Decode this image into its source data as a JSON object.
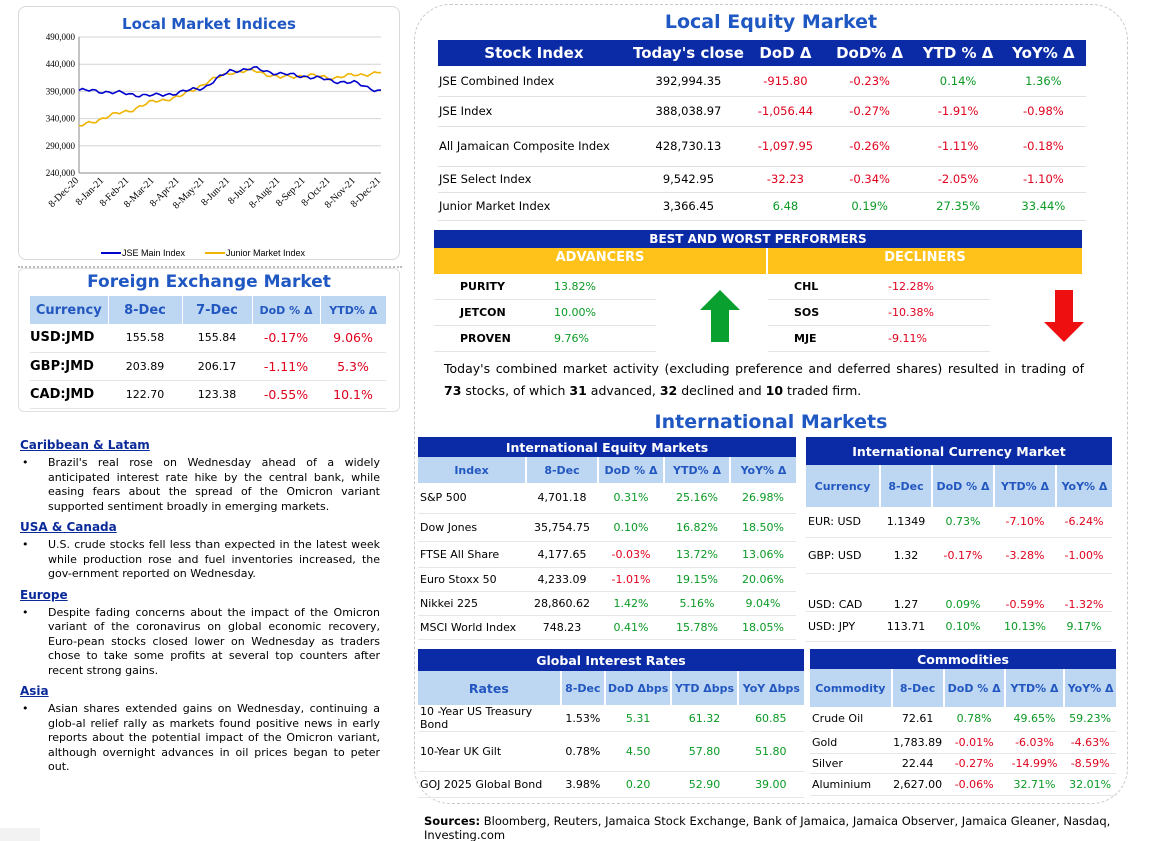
{
  "colors": {
    "navy": "#0a2aa6",
    "light_blue": "#bdd7f3",
    "gold": "#ffc21a",
    "green": "#0a9a24",
    "red": "#e0001c",
    "jse_main": "#0000cc",
    "junior": "#f0b400"
  },
  "local_indices_chart": {
    "title": "Local Market Indices",
    "y_ticks": [
      "490,000",
      "440,000",
      "390,000",
      "340,000",
      "290,000",
      "240,000"
    ],
    "x_ticks": [
      "8-Dec-20",
      "8-Jan-21",
      "8-Feb-21",
      "8-Mar-21",
      "8-Apr-21",
      "8-May-21",
      "8-Jun-21",
      "8-Jul-21",
      "8-Aug-21",
      "8-Sep-21",
      "8-Oct-21",
      "8-Nov-21",
      "8-Dec-21"
    ],
    "legend": [
      "JSE Main Index",
      "Junior Market Index"
    ]
  },
  "chart_data": {
    "type": "line",
    "title": "Local Market Indices",
    "xlabel": "",
    "ylabel": "",
    "ylim": [
      240000,
      490000
    ],
    "grid": true,
    "legend_position": "bottom",
    "x": [
      "8-Dec-20",
      "8-Jan-21",
      "8-Feb-21",
      "8-Mar-21",
      "8-Apr-21",
      "8-May-21",
      "8-Jun-21",
      "8-Jul-21",
      "8-Aug-21",
      "8-Sep-21",
      "8-Oct-21",
      "8-Nov-21",
      "8-Dec-21"
    ],
    "series": [
      {
        "name": "JSE Main Index",
        "values": [
          392000,
          390000,
          385000,
          382000,
          388000,
          398000,
          428000,
          432000,
          422000,
          418000,
          410000,
          405000,
          390000
        ]
      },
      {
        "name": "Junior Market Index",
        "values": [
          325000,
          342000,
          355000,
          372000,
          380000,
          405000,
          425000,
          428000,
          415000,
          420000,
          415000,
          420000,
          425000
        ]
      }
    ]
  },
  "fx": {
    "title": "Foreign Exchange Market",
    "headers": [
      "Currency",
      "8-Dec",
      "7-Dec",
      "DoD % Δ",
      "YTD% Δ"
    ],
    "rows": [
      [
        "USD:JMD",
        "155.58",
        "155.84",
        "-0.17%",
        "9.06%"
      ],
      [
        "GBP:JMD",
        "203.89",
        "206.17",
        "-1.11%",
        "5.3%"
      ],
      [
        "CAD:JMD",
        "122.70",
        "123.38",
        "-0.55%",
        "10.1%"
      ]
    ]
  },
  "news": [
    {
      "region": "Caribbean & Latam",
      "text": "Brazil's real rose on Wednesday ahead of a widely anticipated interest rate hike by the central bank, while easing fears about the spread of the Omicron variant supported sentiment broadly in emerging markets."
    },
    {
      "region": "USA & Canada",
      "text": "U.S. crude stocks fell less than expected in the latest week while production rose and fuel inventories increased, the gov-ernment reported on Wednesday."
    },
    {
      "region": "Europe",
      "text": "Despite fading concerns about the impact of the Omicron variant of the coronavirus on global economic recovery, Euro-pean stocks closed lower on Wednesday as traders chose to take some profits at several top counters after recent strong gains."
    },
    {
      "region": "Asia",
      "text": "Asian shares extended gains on Wednesday, continuing a glob-al relief rally as markets found positive news in early reports about the potential impact of the Omicron variant, although overnight advances in oil prices began to peter out."
    }
  ],
  "local_equity": {
    "title": "Local Equity Market",
    "headers": [
      "Stock Index",
      "Today's close",
      "DoD  Δ",
      "DoD% Δ",
      "YTD % Δ",
      "YoY% Δ"
    ],
    "rows": [
      [
        "JSE Combined Index",
        "392,994.35",
        "-915.80",
        "-0.23%",
        "0.14%",
        "1.36%"
      ],
      [
        "JSE Index",
        "388,038.97",
        "-1,056.44",
        "-0.27%",
        "-1.91%",
        "-0.98%"
      ],
      [
        "All Jamaican Composite Index",
        "428,730.13",
        "-1,097.95",
        "-0.26%",
        "-1.11%",
        "-0.18%"
      ],
      [
        "JSE Select Index",
        "9,542.95",
        "-32.23",
        "-0.34%",
        "-2.05%",
        "-1.10%"
      ],
      [
        "Junior Market Index",
        "3,366.45",
        "6.48",
        "0.19%",
        "27.35%",
        "33.44%"
      ]
    ]
  },
  "performers": {
    "title": "BEST AND WORST PERFORMERS",
    "advancers_label": "ADVANCERS",
    "decliners_label": "DECLINERS",
    "advancers": [
      [
        "PURITY",
        "13.82%"
      ],
      [
        "JETCON",
        "10.00%"
      ],
      [
        "PROVEN",
        "9.76%"
      ]
    ],
    "decliners": [
      [
        "CHL",
        "-12.28%"
      ],
      [
        "SOS",
        "-10.38%"
      ],
      [
        "MJE",
        "-9.11%"
      ]
    ]
  },
  "summary": {
    "p1": "Today's combined market activity (excluding preference and deferred shares) resulted in trading of ",
    "n_total": "73",
    "p2": " stocks, of which ",
    "n_adv": "31",
    "p3": " advanced, ",
    "n_dec": "32",
    "p4": " declined and ",
    "n_firm": "10",
    "p5": " traded firm."
  },
  "intl_title": "International Markets",
  "intl_equity": {
    "title": "International Equity Markets",
    "headers": [
      "Index",
      "8-Dec",
      "DoD % Δ",
      "YTD% Δ",
      "YoY% Δ"
    ],
    "rows": [
      [
        "S&P 500",
        "4,701.18",
        "0.31%",
        "25.16%",
        "26.98%"
      ],
      [
        "Dow Jones",
        "35,754.75",
        "0.10%",
        "16.82%",
        "18.50%"
      ],
      [
        "FTSE All Share",
        "4,177.65",
        "-0.03%",
        "13.72%",
        "13.06%"
      ],
      [
        "Euro Stoxx 50",
        "4,233.09",
        "-1.01%",
        "19.15%",
        "20.06%"
      ],
      [
        "Nikkei 225",
        "28,860.62",
        "1.42%",
        "5.16%",
        "9.04%"
      ],
      [
        "MSCI World Index",
        "748.23",
        "0.41%",
        "15.78%",
        "18.05%"
      ]
    ]
  },
  "intl_currency": {
    "title": "International Currency Market",
    "headers": [
      "Currency",
      "8-Dec",
      "DoD % Δ",
      "YTD% Δ",
      "YoY% Δ"
    ],
    "rows": [
      [
        "EUR: USD",
        "1.1349",
        "0.73%",
        "-7.10%",
        "-6.24%"
      ],
      [
        "GBP: USD",
        "1.32",
        "-0.17%",
        "-3.28%",
        "-1.00%"
      ],
      [
        "USD: CAD",
        "1.27",
        "0.09%",
        "-0.59%",
        "-1.32%"
      ],
      [
        "USD: JPY",
        "113.71",
        "0.10%",
        "10.13%",
        "9.17%"
      ]
    ]
  },
  "rates": {
    "title": "Global Interest Rates",
    "headers": [
      "Rates",
      "8-Dec",
      "DoD Δbps",
      "YTD Δbps",
      "YoY Δbps"
    ],
    "rows": [
      [
        "10 -Year US Treasury Bond",
        "1.53%",
        "5.31",
        "61.32",
        "60.85"
      ],
      [
        "10-Year UK Gilt",
        "0.78%",
        "4.50",
        "57.80",
        "51.80"
      ],
      [
        "GOJ 2025 Global Bond",
        "3.98%",
        "0.20",
        "52.90",
        "39.00"
      ]
    ]
  },
  "commodities": {
    "title": "Commodities",
    "headers": [
      "Commodity",
      "8-Dec",
      "DoD % Δ",
      "YTD% Δ",
      "YoY% Δ"
    ],
    "rows": [
      [
        "Crude Oil",
        "72.61",
        "0.78%",
        "49.65%",
        "59.23%"
      ],
      [
        "Gold",
        "1,783.89",
        "-0.01%",
        "-6.03%",
        "-4.63%"
      ],
      [
        "Silver",
        "22.44",
        "-0.27%",
        "-14.99%",
        "-8.59%"
      ],
      [
        "Aluminium",
        "2,627.00",
        "-0.06%",
        "32.71%",
        "32.01%"
      ]
    ]
  },
  "sources": {
    "label": "Sources:",
    "text": " Bloomberg, Reuters, Jamaica Stock Exchange, Bank of Jamaica, Jamaica Observer, Jamaica Gleaner, Nasdaq, Investing.com"
  }
}
